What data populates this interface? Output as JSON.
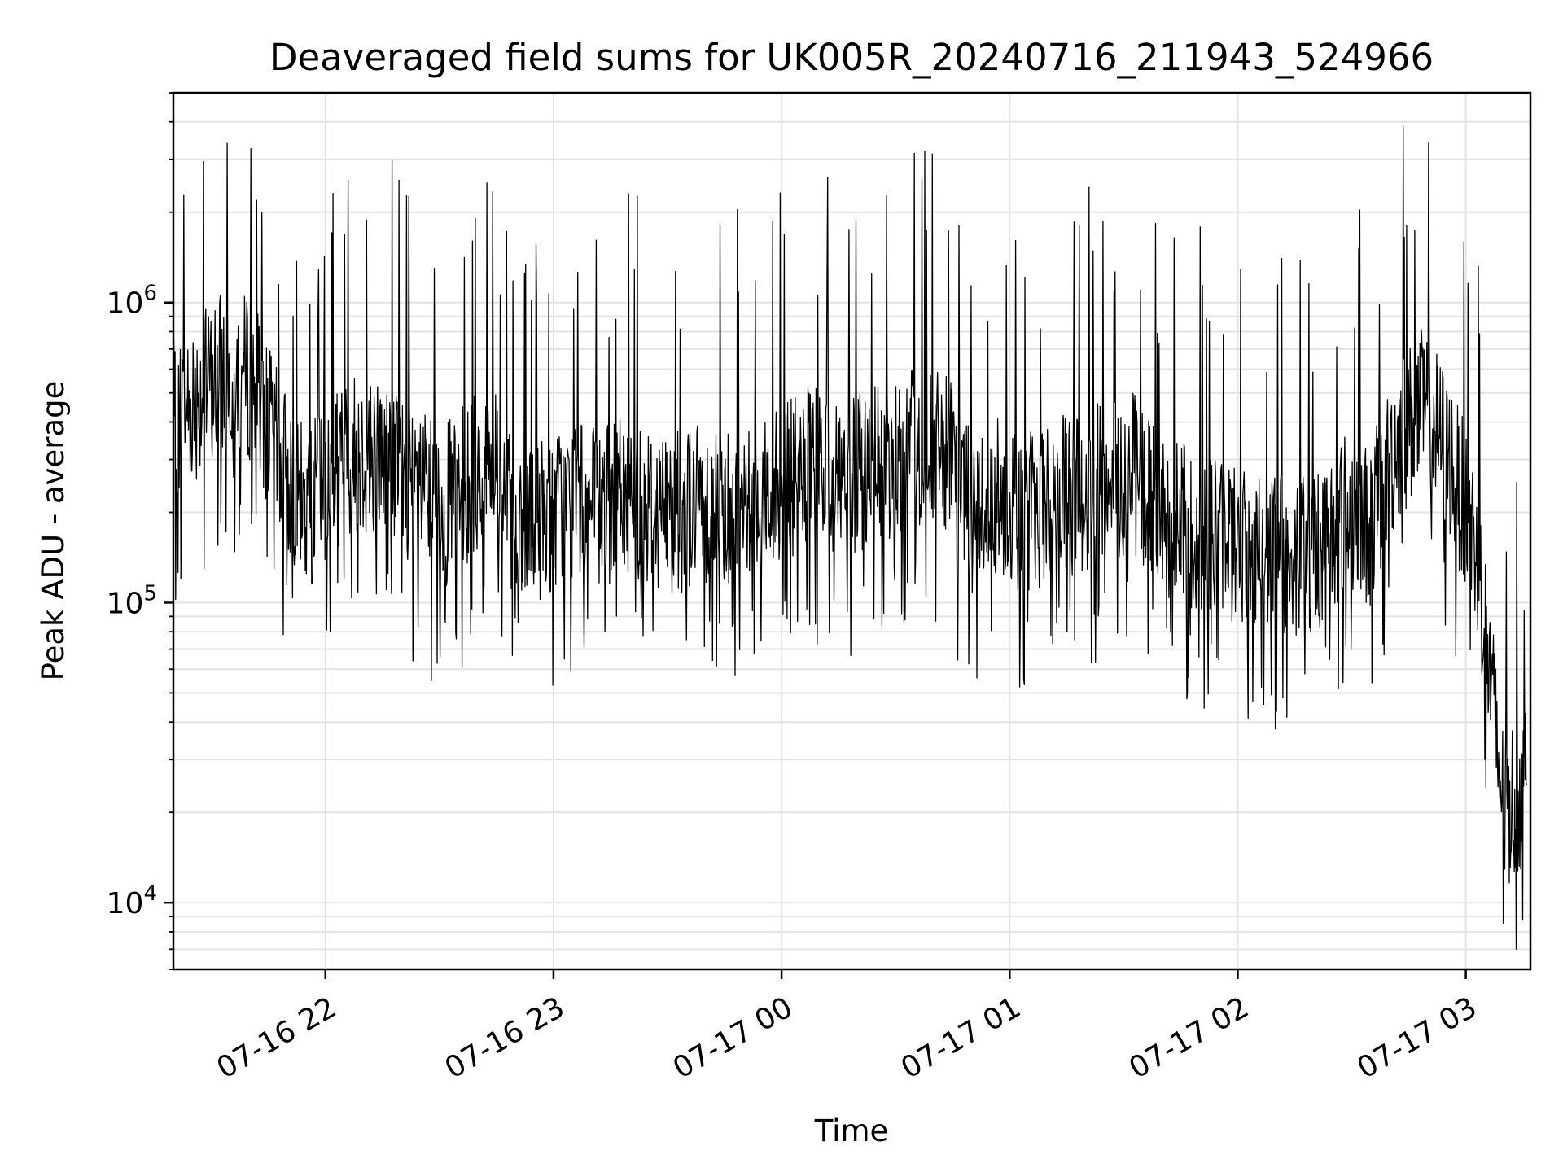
{
  "chart_data": {
    "type": "line",
    "title": "Deaveraged field sums for UK005R_20240716_211943_524966",
    "xlabel": "Time",
    "ylabel": "Peak ADU - average",
    "y_scale": "log",
    "grid": true,
    "legend": "none",
    "line_color": "#000000",
    "xlim": [
      "2024-07-16T21:20",
      "2024-07-17T03:17"
    ],
    "ylim": [
      6000,
      5000000
    ],
    "x_ticks": [
      {
        "value": "2024-07-16T22:00",
        "label": "07-16 22"
      },
      {
        "value": "2024-07-16T23:00",
        "label": "07-16 23"
      },
      {
        "value": "2024-07-17T00:00",
        "label": "07-17 00"
      },
      {
        "value": "2024-07-17T01:00",
        "label": "07-17 01"
      },
      {
        "value": "2024-07-17T02:00",
        "label": "07-17 02"
      },
      {
        "value": "2024-07-17T03:00",
        "label": "07-17 03"
      }
    ],
    "y_ticks": [
      {
        "value": 10000,
        "base": "10",
        "exp": "4"
      },
      {
        "value": 100000,
        "base": "10",
        "exp": "5"
      },
      {
        "value": 1000000,
        "base": "10",
        "exp": "6"
      }
    ],
    "series": [
      {
        "x": [
          "2024-07-16T21:20",
          "2024-07-16T21:27",
          "2024-07-16T21:34",
          "2024-07-16T21:41",
          "2024-07-16T21:48",
          "2024-07-16T21:55",
          "2024-07-16T22:02",
          "2024-07-16T22:09",
          "2024-07-16T22:16",
          "2024-07-16T22:23",
          "2024-07-16T22:30",
          "2024-07-16T22:37",
          "2024-07-16T22:44",
          "2024-07-16T22:51",
          "2024-07-16T22:58",
          "2024-07-16T23:05",
          "2024-07-16T23:12",
          "2024-07-16T23:19",
          "2024-07-16T23:26",
          "2024-07-16T23:33",
          "2024-07-16T23:40",
          "2024-07-16T23:47",
          "2024-07-16T23:54",
          "2024-07-17T00:01",
          "2024-07-17T00:08",
          "2024-07-17T00:15",
          "2024-07-17T00:22",
          "2024-07-17T00:29",
          "2024-07-17T00:36",
          "2024-07-17T00:43",
          "2024-07-17T00:50",
          "2024-07-17T00:57",
          "2024-07-17T01:04",
          "2024-07-17T01:11",
          "2024-07-17T01:18",
          "2024-07-17T01:25",
          "2024-07-17T01:32",
          "2024-07-17T01:39",
          "2024-07-17T01:46",
          "2024-07-17T01:53",
          "2024-07-17T02:00",
          "2024-07-17T02:07",
          "2024-07-17T02:14",
          "2024-07-17T02:21",
          "2024-07-17T02:28",
          "2024-07-17T02:35",
          "2024-07-17T02:42",
          "2024-07-17T02:49",
          "2024-07-17T02:56",
          "2024-07-17T03:03",
          "2024-07-17T03:10",
          "2024-07-17T03:16"
        ],
        "y": [
          400000,
          500000,
          600000,
          550000,
          300000,
          200000,
          280000,
          320000,
          300000,
          250000,
          200000,
          250000,
          300000,
          150000,
          200000,
          220000,
          200000,
          230000,
          210000,
          200000,
          220000,
          210000,
          230000,
          250000,
          280000,
          260000,
          270000,
          300000,
          330000,
          320000,
          200000,
          230000,
          200000,
          220000,
          230000,
          250000,
          280000,
          200000,
          180000,
          170000,
          160000,
          150000,
          140000,
          150000,
          200000,
          180000,
          350000,
          450000,
          300000,
          150000,
          20000,
          25000
        ]
      }
    ]
  }
}
